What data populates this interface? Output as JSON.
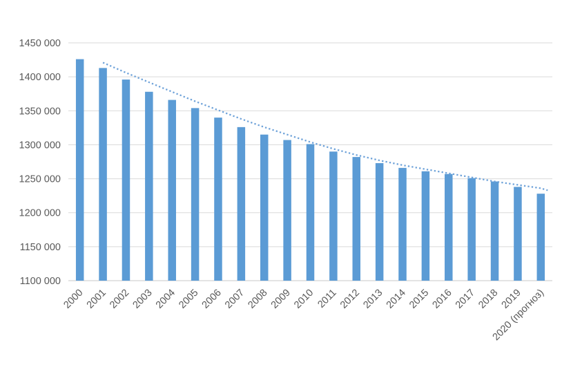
{
  "chart_data": {
    "type": "bar",
    "title": "",
    "xlabel": "",
    "ylabel": "",
    "legend": false,
    "grid": true,
    "background_color": "#ffffff",
    "bar_color": "#5b9bd5",
    "gridline_color": "#d9d9d9",
    "axis_line_color": "#c8c8c8",
    "tick_label_color": "#595959",
    "categories": [
      "2000",
      "2001",
      "2002",
      "2003",
      "2004",
      "2005",
      "2006",
      "2007",
      "2008",
      "2009",
      "2010",
      "2011",
      "2012",
      "2013",
      "2014",
      "2015",
      "2016",
      "2017",
      "2018",
      "2019",
      "2020 (прогноз)"
    ],
    "values": [
      1426000,
      1413000,
      1396000,
      1378000,
      1366000,
      1354000,
      1340000,
      1326000,
      1315000,
      1307000,
      1301000,
      1290000,
      1282000,
      1273000,
      1266000,
      1261000,
      1257000,
      1251000,
      1246000,
      1238000,
      1228000
    ],
    "ylim": [
      1100000,
      1450000
    ],
    "ytick_step": 50000,
    "ytick_labels_top_to_bottom": [
      "1450 000",
      "1400 000",
      "1350 000",
      "1300 000",
      "1250 000",
      "1200 000",
      "1150 000",
      "1100 000"
    ],
    "trendline": {
      "style": "dotted",
      "color": "#6ea2d9",
      "x_start_year": 2001,
      "x_end_year": 2020.3,
      "points": [
        [
          2001,
          1421000
        ],
        [
          2002,
          1406000
        ],
        [
          2003,
          1392000
        ],
        [
          2004,
          1378000
        ],
        [
          2005,
          1364000
        ],
        [
          2006,
          1351000
        ],
        [
          2007,
          1338000
        ],
        [
          2008,
          1326000
        ],
        [
          2009,
          1315000
        ],
        [
          2010,
          1304000
        ],
        [
          2011,
          1294000
        ],
        [
          2012,
          1285000
        ],
        [
          2013,
          1277000
        ],
        [
          2014,
          1270000
        ],
        [
          2015,
          1264000
        ],
        [
          2016,
          1258000
        ],
        [
          2017,
          1252000
        ],
        [
          2018,
          1246000
        ],
        [
          2019,
          1241000
        ],
        [
          2020,
          1236000
        ],
        [
          2020.3,
          1233000
        ]
      ]
    }
  }
}
